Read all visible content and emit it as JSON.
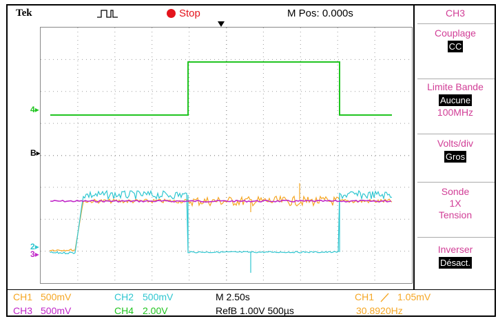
{
  "header": {
    "brand": "Tek",
    "run_state": "Stop",
    "m_pos": "M Pos: 0.000s"
  },
  "side_menu": {
    "title": "CH3",
    "coupling": {
      "label": "Couplage",
      "value": "CC"
    },
    "bandwidth": {
      "label": "Limite Bande",
      "value": "Aucune",
      "sub": "100MHz"
    },
    "volts_div": {
      "label": "Volts/div",
      "value": "Gros"
    },
    "probe": {
      "label": "Sonde",
      "line2": "1X",
      "line3": "Tension"
    },
    "invert": {
      "label": "Inverser",
      "value": "Désact."
    }
  },
  "channel_markers": {
    "ch4": "4",
    "refb": "B",
    "ch2": "2",
    "ch3": "3"
  },
  "status": {
    "ch1_label": "CH1",
    "ch1_scale": "500mV",
    "ch2_label": "CH2",
    "ch2_scale": "500mV",
    "ch3_label": "CH3",
    "ch3_scale": "500mV",
    "ch4_label": "CH4",
    "ch4_scale": "2.00V",
    "timebase": "M 2.50s",
    "refb": "RefB 1.00V 500µs",
    "trigger_source": "CH1",
    "trigger_level": "1.05mV",
    "frequency": "30.8920Hz"
  },
  "colors": {
    "ch1": "#f5a623",
    "ch2": "#2ec6d0",
    "ch3": "#c026c8",
    "ch4": "#1fc41f",
    "menu_text": "#d13d96",
    "stop": "#e4141c"
  }
}
